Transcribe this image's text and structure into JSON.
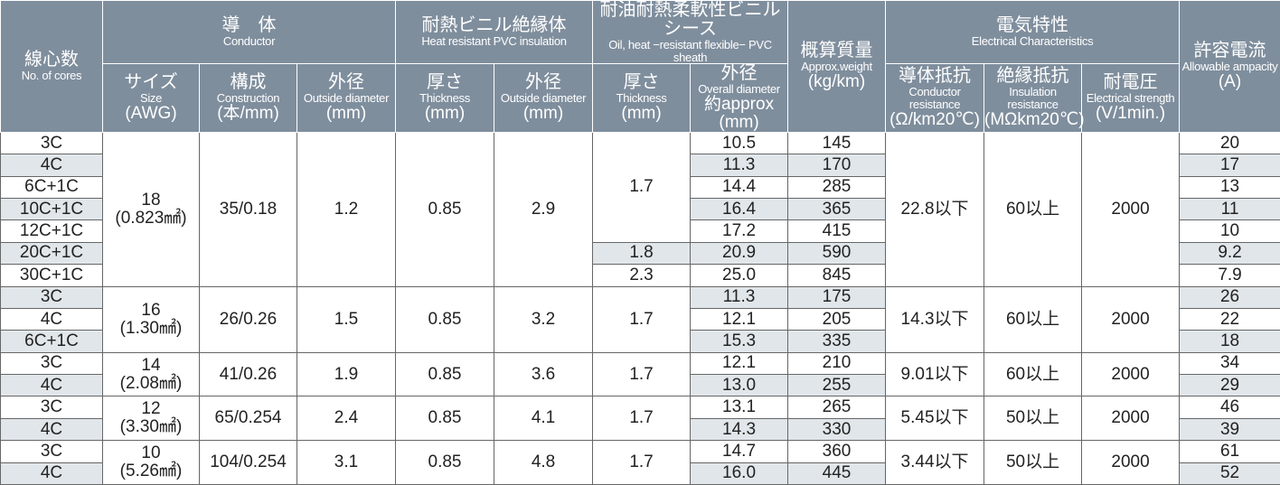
{
  "header": {
    "top": [
      {
        "ja": "線心数",
        "en": "No. of cores"
      },
      {
        "ja": "導　体",
        "en": "Conductor"
      },
      {
        "ja": "耐熱ビニル絶縁体",
        "en": "Heat resistant PVC insulation"
      },
      {
        "ja": "耐油耐熱柔軟性ビニルシース",
        "en": "Oil, heat −resistant flexible− PVC sheath"
      },
      {
        "ja": "概算質量",
        "en": "Approx.weight",
        "unit": "(kg/km)"
      },
      {
        "ja": "電気特性",
        "en": "Electrical Characteristics"
      },
      {
        "ja": "許容電流",
        "en": "Allowable ampacity",
        "unit": "(A)"
      }
    ],
    "sub": [
      {
        "ja": "サイズ",
        "en": "Size",
        "unit": "(AWG)"
      },
      {
        "ja": "構成",
        "en": "Construction",
        "unit": "(本/mm)"
      },
      {
        "ja": "外径",
        "en": "Outside diameter",
        "unit": "(mm)"
      },
      {
        "ja": "厚さ",
        "en": "Thickness",
        "unit": "(mm)"
      },
      {
        "ja": "外径",
        "en": "Outside diameter",
        "unit": "(mm)"
      },
      {
        "ja": "厚さ",
        "en": "Thickness",
        "unit": "(mm)"
      },
      {
        "ja": "外径",
        "en": "Overall diameter",
        "unit": "約approx (mm)"
      },
      {
        "ja": "導体抵抗",
        "en": "Conductor resistance",
        "unit": "(Ω/km20℃)"
      },
      {
        "ja": "絶縁抵抗",
        "en": "Insulation resistance",
        "unit": "(MΩkm20℃)"
      },
      {
        "ja": "耐電圧",
        "en": "Electrical strength",
        "unit": "(V/1min.)"
      }
    ]
  },
  "groups": [
    {
      "size": "18",
      "area": "(0.823㎟)",
      "construction": "35/0.18",
      "conductor_od": "1.2",
      "insulation_thickness": "0.85",
      "insulation_od": "2.9",
      "sheath_thickness": [
        "1.7",
        "1.8",
        "2.3"
      ],
      "conductor_resistance": "22.8以下",
      "insulation_resistance": "60以上",
      "voltage": "2000",
      "rows": [
        {
          "cores": "3C",
          "od": "10.5",
          "weight": "145",
          "ampacity": "20"
        },
        {
          "cores": "4C",
          "od": "11.3",
          "weight": "170",
          "ampacity": "17"
        },
        {
          "cores": "6C+1C",
          "od": "14.4",
          "weight": "285",
          "ampacity": "13"
        },
        {
          "cores": "10C+1C",
          "od": "16.4",
          "weight": "365",
          "ampacity": "11"
        },
        {
          "cores": "12C+1C",
          "od": "17.2",
          "weight": "415",
          "ampacity": "10"
        },
        {
          "cores": "20C+1C",
          "od": "20.9",
          "weight": "590",
          "ampacity": "9.2"
        },
        {
          "cores": "30C+1C",
          "od": "25.0",
          "weight": "845",
          "ampacity": "7.9"
        }
      ]
    },
    {
      "size": "16",
      "area": "(1.30㎟)",
      "construction": "26/0.26",
      "conductor_od": "1.5",
      "insulation_thickness": "0.85",
      "insulation_od": "3.2",
      "sheath_thickness": [
        "1.7"
      ],
      "conductor_resistance": "14.3以下",
      "insulation_resistance": "60以上",
      "voltage": "2000",
      "rows": [
        {
          "cores": "3C",
          "od": "11.3",
          "weight": "175",
          "ampacity": "26"
        },
        {
          "cores": "4C",
          "od": "12.1",
          "weight": "205",
          "ampacity": "22"
        },
        {
          "cores": "6C+1C",
          "od": "15.3",
          "weight": "335",
          "ampacity": "18"
        }
      ]
    },
    {
      "size": "14",
      "area": "(2.08㎟)",
      "construction": "41/0.26",
      "conductor_od": "1.9",
      "insulation_thickness": "0.85",
      "insulation_od": "3.6",
      "sheath_thickness": [
        "1.7"
      ],
      "conductor_resistance": "9.01以下",
      "insulation_resistance": "60以上",
      "voltage": "2000",
      "rows": [
        {
          "cores": "3C",
          "od": "12.1",
          "weight": "210",
          "ampacity": "34"
        },
        {
          "cores": "4C",
          "od": "13.0",
          "weight": "255",
          "ampacity": "29"
        }
      ]
    },
    {
      "size": "12",
      "area": "(3.30㎟)",
      "construction": "65/0.254",
      "conductor_od": "2.4",
      "insulation_thickness": "0.85",
      "insulation_od": "4.1",
      "sheath_thickness": [
        "1.7"
      ],
      "conductor_resistance": "5.45以下",
      "insulation_resistance": "50以上",
      "voltage": "2000",
      "rows": [
        {
          "cores": "3C",
          "od": "13.1",
          "weight": "265",
          "ampacity": "46"
        },
        {
          "cores": "4C",
          "od": "14.3",
          "weight": "330",
          "ampacity": "39"
        }
      ]
    },
    {
      "size": "10",
      "area": "(5.26㎟)",
      "construction": "104/0.254",
      "conductor_od": "3.1",
      "insulation_thickness": "0.85",
      "insulation_od": "4.8",
      "sheath_thickness": [
        "1.7"
      ],
      "conductor_resistance": "3.44以下",
      "insulation_resistance": "50以上",
      "voltage": "2000",
      "rows": [
        {
          "cores": "3C",
          "od": "14.7",
          "weight": "360",
          "ampacity": "61"
        },
        {
          "cores": "4C",
          "od": "16.0",
          "weight": "445",
          "ampacity": "52"
        }
      ]
    }
  ]
}
